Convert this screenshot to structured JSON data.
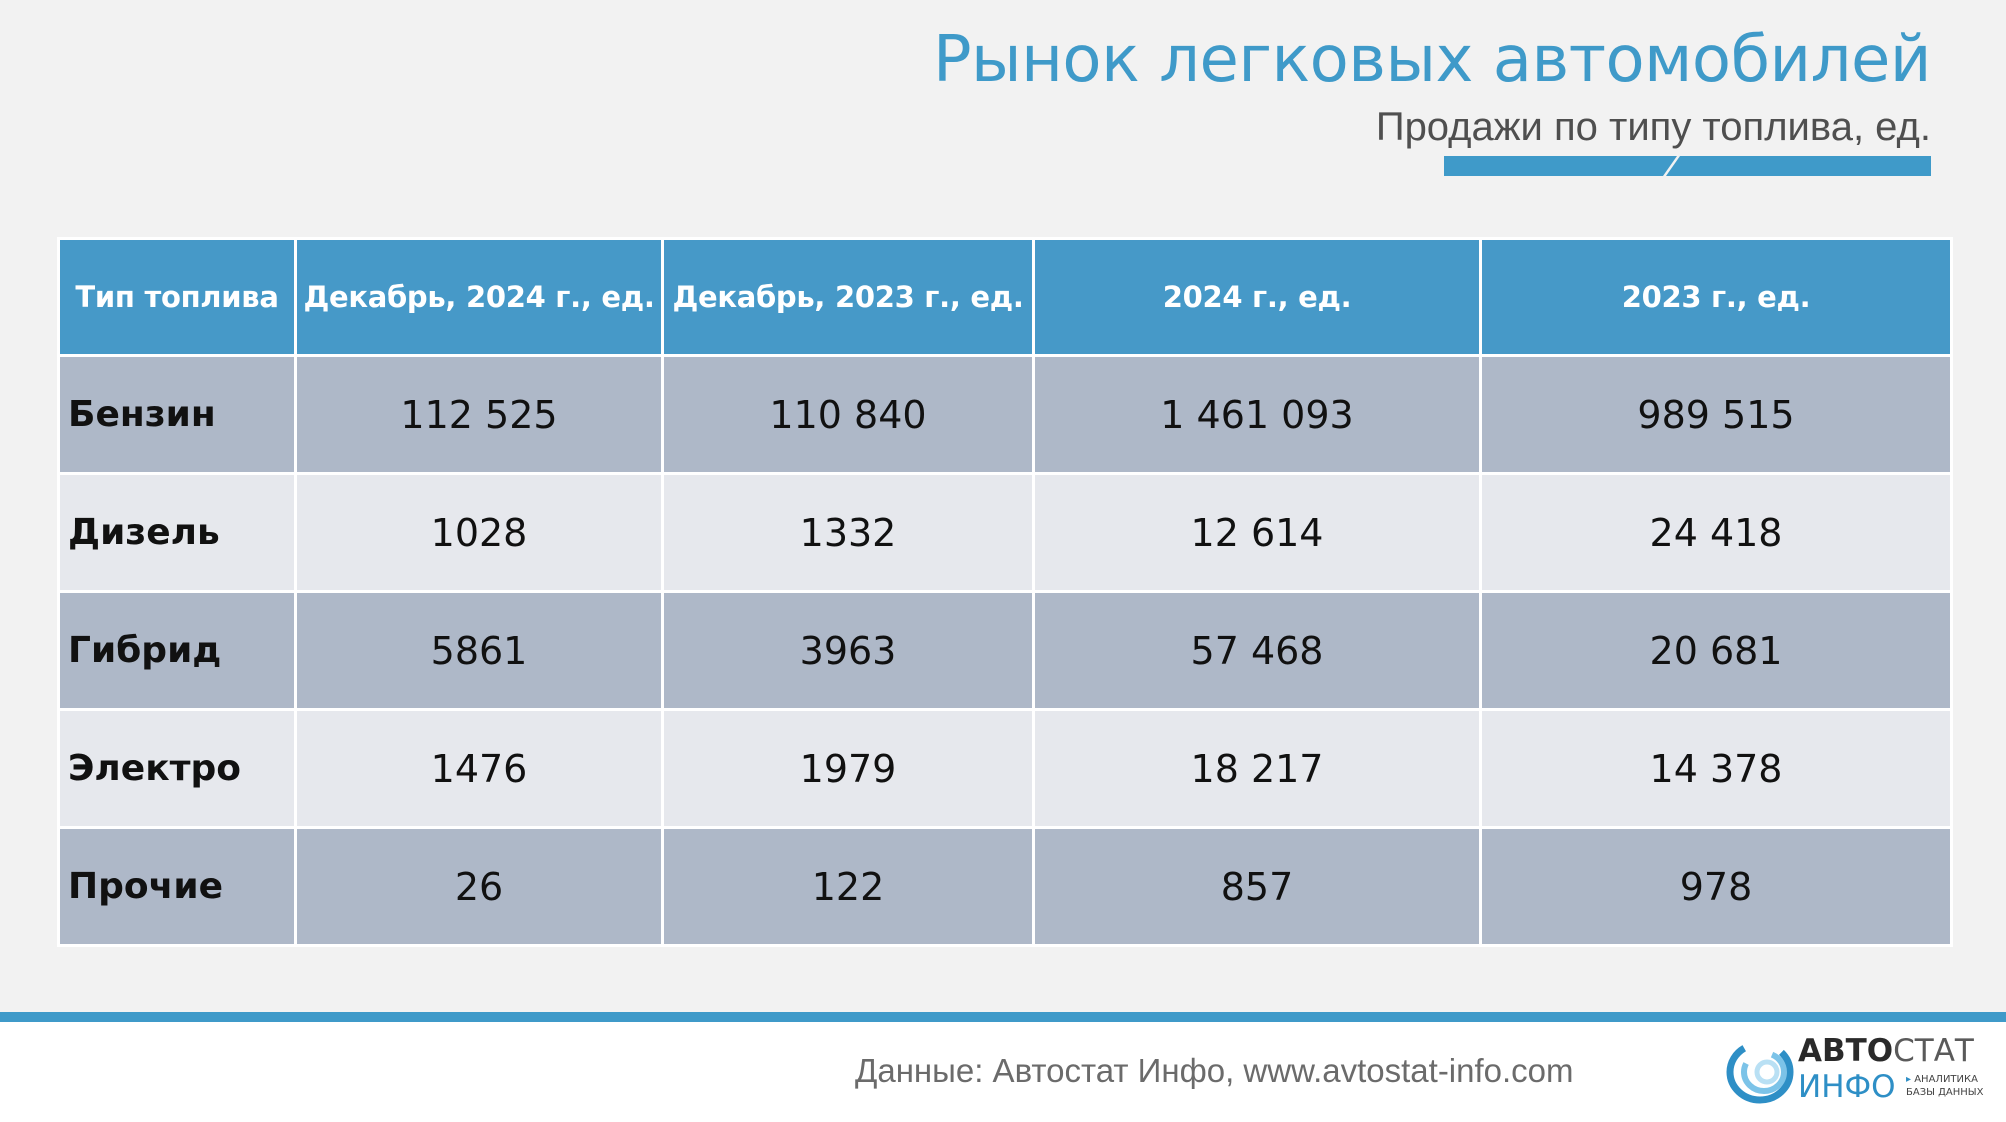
{
  "header": {
    "title": "Рынок легковых автомобилей",
    "subtitle": "Продажи по типу топлива, ед."
  },
  "colors": {
    "accent": "#3f9ac9",
    "header_cell": "#4699c8",
    "row_dark": "#aeb8c8",
    "row_light": "#e6e8ed"
  },
  "table": {
    "columns": [
      "Тип топлива",
      "Декабрь, 2024 г., ед.",
      "Декабрь, 2023 г., ед.",
      "2024 г., ед.",
      "2023 г., ед."
    ],
    "rows": [
      {
        "fuel": "Бензин",
        "dec_2024": "112 525",
        "dec_2023": "110 840",
        "y2024": "1 461 093",
        "y2023": "989 515"
      },
      {
        "fuel": "Дизель",
        "dec_2024": "1028",
        "dec_2023": "1332",
        "y2024": "12 614",
        "y2023": "24 418"
      },
      {
        "fuel": "Гибрид",
        "dec_2024": "5861",
        "dec_2023": "3963",
        "y2024": "57 468",
        "y2023": "20 681"
      },
      {
        "fuel": "Электро",
        "dec_2024": "1476",
        "dec_2023": "1979",
        "y2024": "18 217",
        "y2023": "14 378"
      },
      {
        "fuel": "Прочие",
        "dec_2024": "26",
        "dec_2023": "122",
        "y2024": "857",
        "y2023": "978"
      }
    ]
  },
  "footer": {
    "source": "Данные: Автостат Инфо, www.avtostat-info.com",
    "logo": {
      "word1_bold": "АВТО",
      "word1_rest": "СТАТ",
      "word2": "ИНФО",
      "tagline_arrow": "▸",
      "tagline_1": "АНАЛИТИКА",
      "tagline_2": "БАЗЫ ДАННЫХ"
    }
  }
}
